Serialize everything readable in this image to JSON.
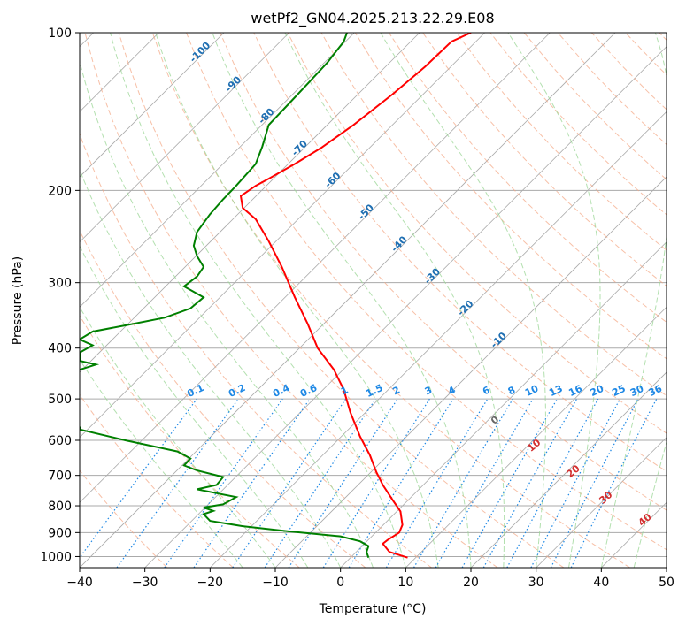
{
  "chart_data": {
    "type": "line",
    "title": "wetPf2_GN04.2025.213.22.29.E08",
    "xlabel": "Temperature (°C)",
    "ylabel": "Pressure (hPa)",
    "xlim": [
      -40,
      50
    ],
    "ylim": [
      1050,
      100
    ],
    "y_scale": "log",
    "x_ticks": [
      -40,
      -30,
      -20,
      -10,
      0,
      10,
      20,
      30,
      40,
      50
    ],
    "y_ticks": [
      1000,
      900,
      800,
      700,
      600,
      500,
      400,
      300,
      200,
      100
    ],
    "grid": true,
    "series": [
      {
        "color": "#ff0000",
        "points": [
          [
            10.3,
            1005
          ],
          [
            7.5,
            980
          ],
          [
            6.5,
            945
          ],
          [
            7.2,
            930
          ],
          [
            9,
            900
          ],
          [
            9.5,
            870
          ],
          [
            9.2,
            820
          ],
          [
            8,
            780
          ],
          [
            6.5,
            730
          ],
          [
            5.5,
            690
          ],
          [
            4.5,
            640
          ],
          [
            3,
            590
          ],
          [
            1.5,
            530
          ],
          [
            0.5,
            480
          ],
          [
            -1,
            440
          ],
          [
            -3.5,
            400
          ],
          [
            -5,
            360
          ],
          [
            -7,
            320
          ],
          [
            -9,
            280
          ],
          [
            -11,
            250
          ],
          [
            -13,
            227
          ],
          [
            -15,
            216
          ],
          [
            -15.3,
            205
          ],
          [
            -13,
            196
          ],
          [
            -11,
            190
          ],
          [
            -7,
            178
          ],
          [
            -3,
            166
          ],
          [
            2,
            150
          ],
          [
            8,
            131
          ],
          [
            13,
            116
          ],
          [
            17,
            104
          ],
          [
            20,
            100
          ]
        ]
      },
      {
        "color": "#008000",
        "points": [
          [
            4.3,
            1005
          ],
          [
            4,
            980
          ],
          [
            4.3,
            955
          ],
          [
            3,
            935
          ],
          [
            0,
            915
          ],
          [
            -8,
            895
          ],
          [
            -15,
            875
          ],
          [
            -20,
            855
          ],
          [
            -21,
            830
          ],
          [
            -19.5,
            818
          ],
          [
            -21,
            806
          ],
          [
            -18,
            795
          ],
          [
            -16,
            770
          ],
          [
            -19,
            757
          ],
          [
            -22,
            744
          ],
          [
            -19,
            730
          ],
          [
            -18,
            705
          ],
          [
            -22,
            685
          ],
          [
            -24,
            670
          ],
          [
            -23,
            650
          ],
          [
            -25,
            630
          ],
          [
            -33,
            600
          ],
          [
            -40,
            572
          ],
          [
            -40,
            565
          ]
        ]
      },
      {
        "color": "#008000",
        "points": [
          [
            -40,
            440
          ],
          [
            -37.5,
            430
          ],
          [
            -40,
            423
          ],
          [
            -40,
            408
          ],
          [
            -38,
            395
          ],
          [
            -40,
            385
          ],
          [
            -38,
            372
          ],
          [
            -33,
            362
          ],
          [
            -27,
            350
          ],
          [
            -23,
            336
          ],
          [
            -21,
            320
          ],
          [
            -24,
            305
          ],
          [
            -22,
            292
          ],
          [
            -21,
            280
          ],
          [
            -22,
            267
          ],
          [
            -22.5,
            255
          ],
          [
            -22,
            240
          ],
          [
            -20,
            222
          ],
          [
            -18,
            208
          ],
          [
            -16,
            196
          ],
          [
            -13,
            178
          ],
          [
            -12,
            165
          ],
          [
            -11,
            150
          ],
          [
            -8,
            137
          ],
          [
            -5,
            125
          ],
          [
            -2,
            114
          ],
          [
            0.5,
            104
          ],
          [
            1,
            100
          ]
        ]
      }
    ],
    "mixing_ratio_labels": [
      "0.1",
      "0.2",
      "0.4",
      "0.6",
      "1",
      "1.5",
      "2",
      "3",
      "4",
      "6",
      "8",
      "10",
      "13",
      "16",
      "20",
      "25",
      "30",
      "36"
    ],
    "dry_adiabat_labels": [
      "-100",
      "-90",
      "-80",
      "-70",
      "-60",
      "-50",
      "-40",
      "-30",
      "-20",
      "-10"
    ],
    "moist_adiabat_labels": [
      "0",
      "10",
      "20",
      "30",
      "40"
    ],
    "colors": {
      "temperature": "#ff0000",
      "dewpoint": "#008000",
      "isotherm": "#aaaaaa",
      "dry_adiabat": "#f4a582",
      "moist_adiabat": "#99d594",
      "mixing_ratio": "#1e88e5",
      "dry_label": "#1f6fb2",
      "moist_label": "#d32f2f",
      "zero_label": "#666666"
    }
  }
}
